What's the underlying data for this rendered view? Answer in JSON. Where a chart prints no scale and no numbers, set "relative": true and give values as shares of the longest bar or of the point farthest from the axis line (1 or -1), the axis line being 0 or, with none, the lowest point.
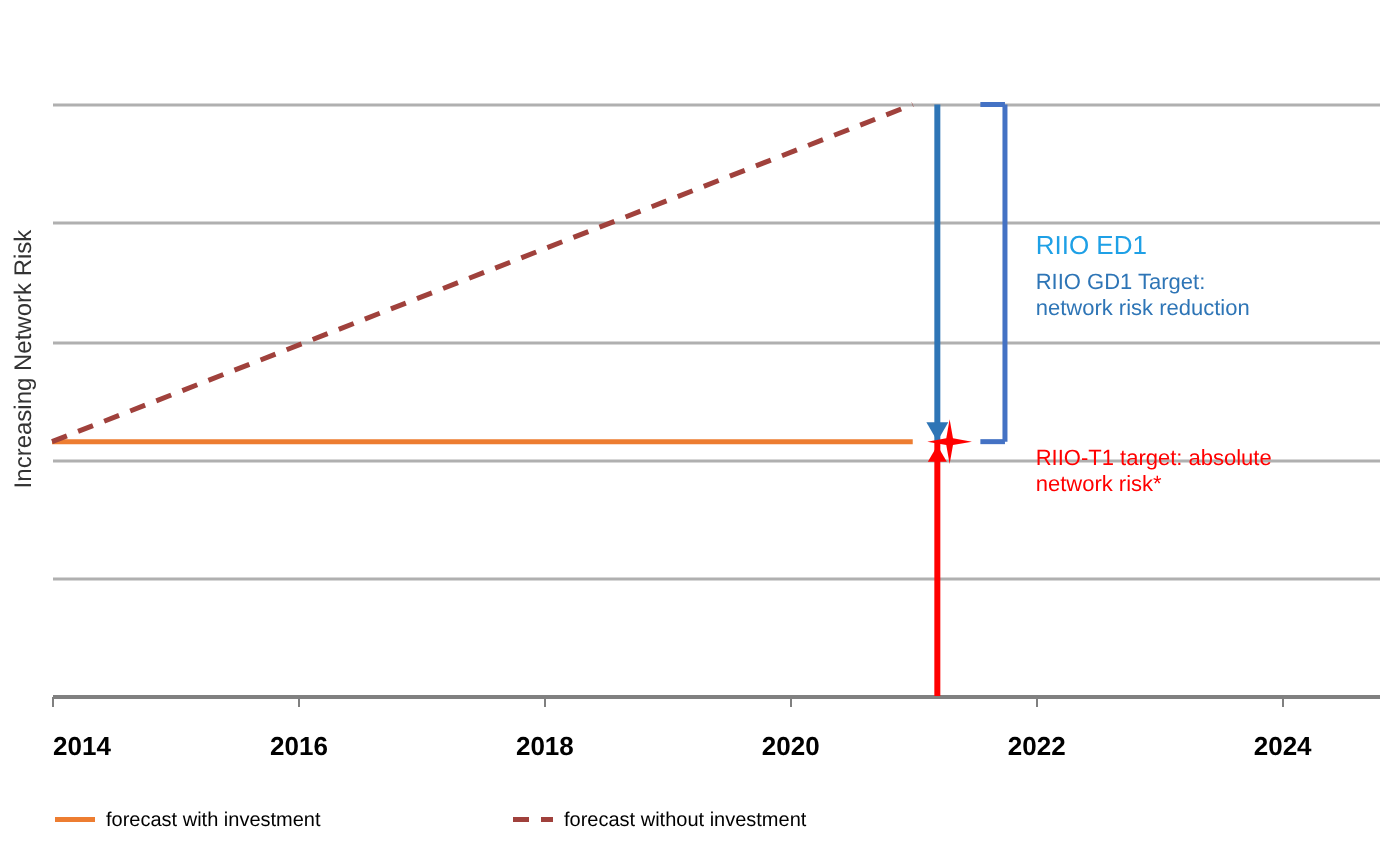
{
  "chart_data": {
    "type": "line",
    "relative": true,
    "ylabel": "Increasing Network Risk",
    "xlim": [
      2014,
      2024.8
    ],
    "xticks": [
      2014,
      2016,
      2018,
      2020,
      2022,
      2024
    ],
    "grid": "y",
    "legend": "bottom",
    "tick_labels": "x",
    "x": [
      2014,
      2021
    ],
    "series": [
      {
        "name": "forecast with investment",
        "color": "#ed7d31",
        "line_style": "solid",
        "values": [
          0.43,
          0.43
        ]
      },
      {
        "name": "forecast without investment",
        "color": "#a0413c",
        "line_style": "dashed",
        "values": [
          0.43,
          1
        ]
      }
    ],
    "annotations": [
      "RIIO ED1",
      "RIIO  GD1 Target:  network risk reduction",
      "RIIO-T1 target: absolute network risk*"
    ]
  }
}
